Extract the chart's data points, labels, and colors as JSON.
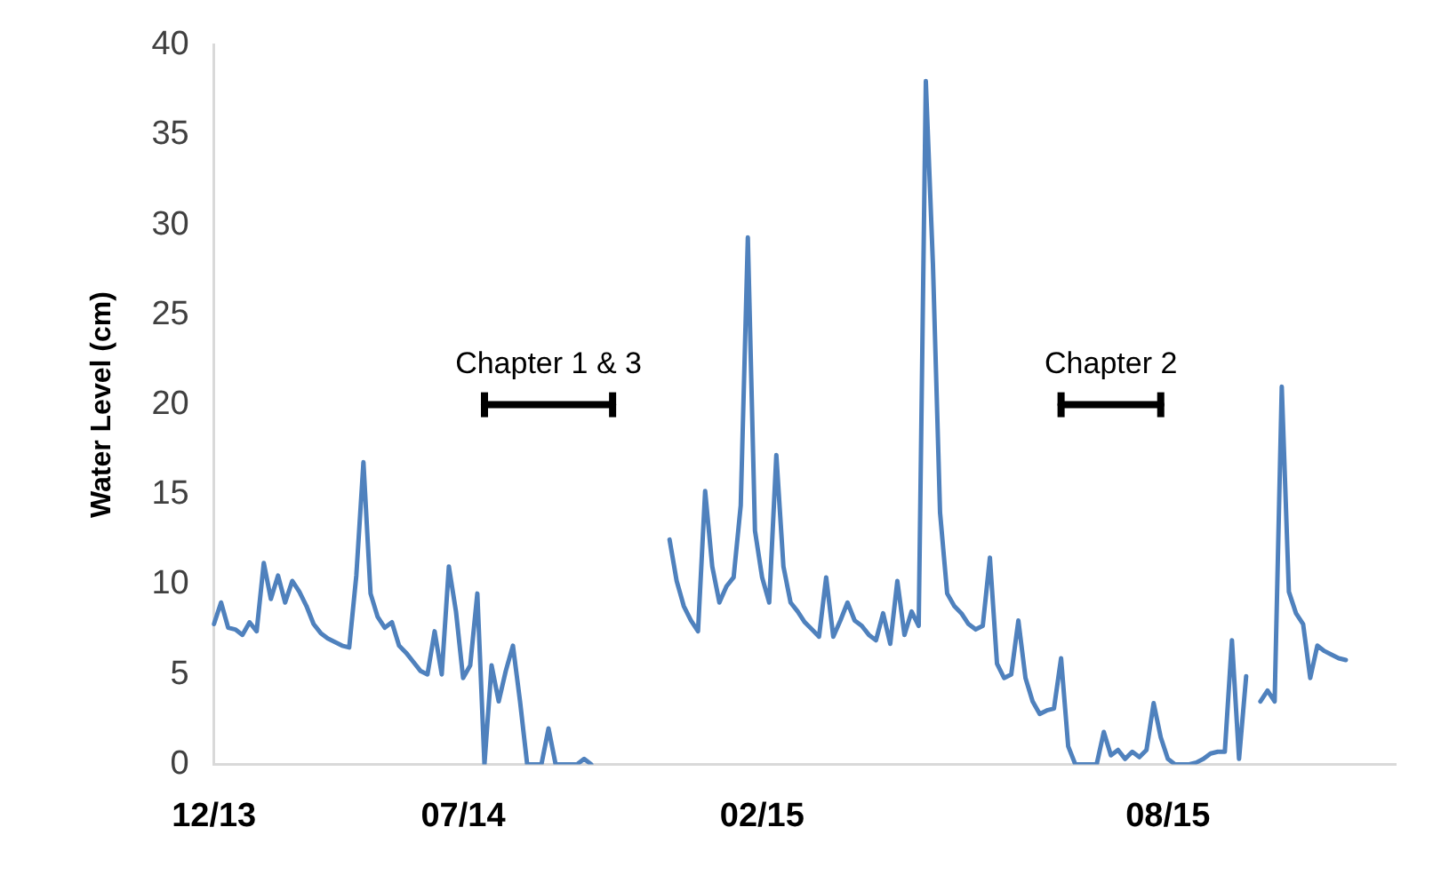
{
  "chart_data": {
    "type": "line",
    "ylabel": "Water Level (cm)",
    "ylim": [
      0,
      40
    ],
    "yticks": [
      0,
      5,
      10,
      15,
      20,
      25,
      30,
      35,
      40
    ],
    "grid": false,
    "legend": false,
    "marker": "none",
    "line_style": "solid",
    "categories": [
      "12/13",
      null,
      null,
      null,
      null,
      null,
      null,
      null,
      null,
      null,
      null,
      null,
      null,
      null,
      null,
      null,
      null,
      null,
      null,
      null,
      null,
      null,
      null,
      null,
      null,
      null,
      null,
      null,
      null,
      null,
      null,
      null,
      null,
      null,
      null,
      "07/14",
      null,
      null,
      null,
      null,
      null,
      null,
      null,
      null,
      null,
      null,
      null,
      null,
      null,
      null,
      null,
      null,
      null,
      null,
      null,
      null,
      null,
      null,
      null,
      null,
      null,
      null,
      null,
      null,
      null,
      null,
      null,
      null,
      null,
      null,
      null,
      null,
      null,
      null,
      null,
      null,
      null,
      "02/15",
      null,
      null,
      null,
      null,
      null,
      null,
      null,
      null,
      null,
      null,
      null,
      null,
      null,
      null,
      null,
      null,
      null,
      null,
      null,
      null,
      null,
      null,
      null,
      null,
      null,
      null,
      null,
      null,
      null,
      null,
      null,
      null,
      null,
      null,
      null,
      null,
      null,
      null,
      null,
      null,
      null,
      null,
      null,
      null,
      null,
      null,
      null,
      null,
      null,
      null,
      null,
      null,
      null,
      null,
      null,
      null,
      "08/15",
      null,
      null,
      null,
      null,
      null,
      null,
      null,
      null,
      null,
      null,
      null,
      null,
      null,
      null,
      null,
      null,
      null,
      null,
      null,
      null,
      null,
      null,
      null,
      null,
      null,
      null,
      null,
      null,
      null,
      null,
      null,
      null
    ],
    "series": [
      {
        "color": "#4f81bd",
        "values": [
          7.8,
          9.0,
          7.6,
          7.5,
          7.2,
          7.9,
          7.4,
          11.2,
          9.2,
          10.5,
          9.0,
          10.2,
          9.6,
          8.8,
          7.8,
          7.3,
          7.0,
          6.8,
          6.6,
          6.5,
          10.5,
          16.8,
          9.5,
          8.2,
          7.6,
          7.9,
          6.6,
          6.2,
          5.7,
          5.2,
          5.0,
          7.4,
          5.0,
          11.0,
          8.5,
          4.8,
          5.5,
          9.5,
          0,
          5.5,
          3.5,
          5.2,
          6.6,
          3.5,
          0,
          0,
          0,
          2.0,
          0,
          0,
          0,
          0,
          0.3,
          0,
          null,
          null,
          null,
          null,
          null,
          null,
          null,
          null,
          null,
          null,
          12.5,
          10.2,
          8.8,
          8.0,
          7.4,
          15.2,
          11.0,
          9.0,
          9.9,
          10.4,
          14.4,
          29.3,
          13.0,
          10.4,
          9.0,
          17.2,
          11.0,
          9.0,
          8.5,
          7.9,
          7.5,
          7.1,
          10.4,
          7.1,
          8.0,
          9.0,
          8.0,
          7.7,
          7.2,
          6.9,
          8.4,
          6.7,
          10.2,
          7.2,
          8.5,
          7.7,
          38.0,
          27.8,
          14.0,
          9.5,
          8.8,
          8.4,
          7.8,
          7.5,
          7.7,
          11.5,
          5.6,
          4.8,
          5.0,
          8.0,
          4.8,
          3.5,
          2.8,
          3.0,
          3.1,
          5.9,
          1.0,
          0,
          0,
          0,
          0,
          1.8,
          0.5,
          0.8,
          0.3,
          0.7,
          0.4,
          0.8,
          3.4,
          1.5,
          0.3,
          0,
          0,
          0,
          0.1,
          0.3,
          0.6,
          0.7,
          0.7,
          6.9,
          0.3,
          4.9,
          null,
          3.5,
          4.1,
          3.5,
          21.0,
          9.6,
          8.4,
          7.8,
          4.8,
          6.6,
          6.3,
          6.1,
          5.9,
          5.8,
          null,
          null,
          null,
          null,
          null,
          null,
          null
        ]
      },
      {
        "name": "Chapter 1 & 3",
        "color": "#000000",
        "values": [
          null,
          null,
          null,
          null,
          null,
          null,
          null,
          null,
          null,
          null,
          null,
          null,
          null,
          null,
          null,
          null,
          null,
          null,
          null,
          null,
          null,
          null,
          null,
          null,
          null,
          null,
          null,
          null,
          null,
          null,
          null,
          null,
          null,
          null,
          null,
          null,
          null,
          null,
          20,
          null,
          null,
          null,
          null,
          null,
          null,
          null,
          null,
          null,
          null,
          null,
          null,
          null,
          null,
          null,
          null,
          null,
          20,
          null,
          null,
          null,
          null,
          null,
          null,
          null,
          null,
          null,
          null,
          null,
          null,
          null,
          null,
          null,
          null,
          null,
          null,
          null,
          null,
          null,
          null,
          null,
          null,
          null,
          null,
          null,
          null,
          null,
          null,
          null,
          null,
          null,
          null,
          null,
          null,
          null,
          null,
          null,
          null,
          null,
          null,
          null,
          null,
          null,
          null,
          null,
          null,
          null,
          null,
          null,
          null,
          null,
          null,
          null,
          null,
          null,
          null,
          null,
          null,
          null,
          null,
          null,
          null,
          null,
          null,
          null,
          null,
          null,
          null,
          null,
          null,
          null,
          null,
          null,
          null,
          null,
          null,
          null,
          null,
          null,
          null,
          null,
          null,
          null,
          null,
          null,
          null,
          null,
          null,
          null,
          null,
          null,
          null,
          null,
          null,
          null,
          null,
          null,
          null,
          null,
          null,
          null,
          null,
          null,
          null,
          null,
          null,
          null,
          null
        ]
      },
      {
        "name": "Chapter 2",
        "color": "#000000",
        "values": [
          null,
          null,
          null,
          null,
          null,
          null,
          null,
          null,
          null,
          null,
          null,
          null,
          null,
          null,
          null,
          null,
          null,
          null,
          null,
          null,
          null,
          null,
          null,
          null,
          null,
          null,
          null,
          null,
          null,
          null,
          null,
          null,
          null,
          null,
          null,
          null,
          null,
          null,
          null,
          null,
          null,
          null,
          null,
          null,
          null,
          null,
          null,
          null,
          null,
          null,
          null,
          null,
          null,
          null,
          null,
          null,
          null,
          null,
          null,
          null,
          null,
          null,
          null,
          null,
          null,
          null,
          null,
          null,
          null,
          null,
          null,
          null,
          null,
          null,
          null,
          null,
          null,
          null,
          null,
          null,
          null,
          null,
          null,
          null,
          null,
          null,
          null,
          null,
          null,
          null,
          null,
          null,
          null,
          null,
          null,
          null,
          null,
          null,
          null,
          null,
          null,
          null,
          null,
          null,
          null,
          null,
          null,
          null,
          null,
          null,
          null,
          null,
          null,
          null,
          null,
          null,
          null,
          null,
          null,
          20,
          null,
          null,
          null,
          null,
          null,
          null,
          null,
          null,
          null,
          null,
          null,
          null,
          null,
          20,
          null,
          null,
          null,
          null,
          null,
          null,
          null,
          null,
          null,
          null,
          null,
          null,
          null,
          null,
          null,
          null,
          null,
          null,
          null,
          null,
          null,
          null,
          null,
          null,
          null,
          null,
          null,
          null,
          null,
          null,
          null,
          null,
          null
        ]
      }
    ]
  }
}
